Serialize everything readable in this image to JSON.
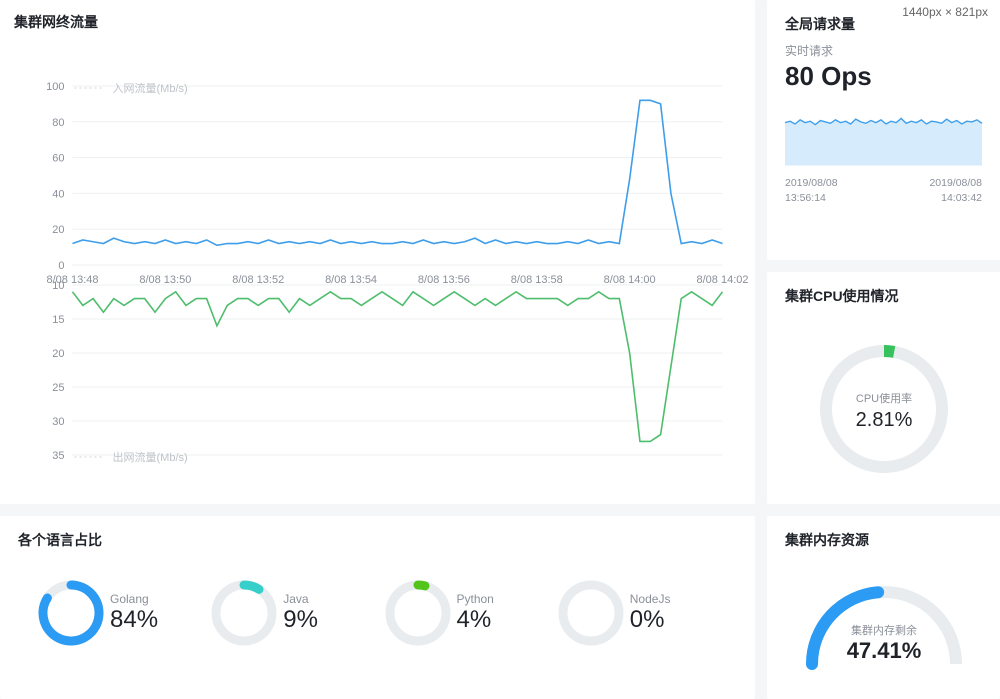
{
  "dimension_badge": "1440px × 821px",
  "traffic": {
    "title": "集群网终流量",
    "legend_in": "入网流量(Mb/s)",
    "legend_out": "出网流量(Mb/s)",
    "color_in": "#3f9eea",
    "color_out": "#4ebd6c",
    "grid_color": "#eef0f2",
    "axis_color": "#8a8f99",
    "x_labels": [
      "8/08 13:48",
      "8/08 13:50",
      "8/08 13:52",
      "8/08 13:54",
      "8/08 13:56",
      "8/08 13:58",
      "8/08 14:00",
      "8/08 14:02"
    ],
    "y_in_ticks": [
      0,
      20,
      40,
      60,
      80,
      100
    ],
    "y_out_ticks": [
      10,
      15,
      20,
      25,
      30,
      35
    ],
    "in_values": [
      12,
      14,
      13,
      12,
      15,
      13,
      12,
      13,
      12,
      14,
      12,
      13,
      12,
      14,
      11,
      12,
      12,
      13,
      12,
      14,
      12,
      13,
      12,
      13,
      12,
      14,
      12,
      13,
      12,
      13,
      12,
      12,
      13,
      12,
      14,
      12,
      13,
      12,
      13,
      15,
      12,
      14,
      12,
      13,
      12,
      13,
      12,
      12,
      13,
      12,
      14,
      12,
      13,
      12,
      48,
      92,
      92,
      90,
      40,
      12,
      13,
      12,
      14,
      12
    ],
    "out_values": [
      11,
      13,
      12,
      14,
      12,
      13,
      12,
      12,
      14,
      12,
      11,
      13,
      12,
      12,
      16,
      13,
      12,
      12,
      13,
      12,
      12,
      14,
      12,
      13,
      12,
      11,
      12,
      12,
      13,
      12,
      11,
      12,
      13,
      11,
      12,
      13,
      12,
      11,
      12,
      13,
      12,
      13,
      12,
      11,
      12,
      12,
      12,
      12,
      13,
      12,
      12,
      11,
      12,
      12,
      20,
      33,
      33,
      32,
      22,
      12,
      11,
      12,
      13,
      11
    ]
  },
  "requests": {
    "title": "全局请求量",
    "subtitle": "实时请求",
    "value": "80 Ops",
    "line_color": "#3f9eea",
    "fill_color": "#d6ebfb",
    "range_start_date": "2019/08/08",
    "range_start_time": "13:56:14",
    "range_end_date": "2019/08/08",
    "range_end_time": "14:03:42",
    "spark_values": [
      78,
      80,
      76,
      82,
      78,
      80,
      75,
      81,
      79,
      77,
      82,
      78,
      80,
      76,
      83,
      79,
      77,
      81,
      78,
      82,
      76,
      80,
      78,
      84,
      77,
      80,
      78,
      82,
      76,
      80,
      79,
      77,
      83,
      78,
      81,
      76,
      80,
      79,
      82,
      77
    ]
  },
  "cpu": {
    "title": "集群CPU使用情况",
    "center_label": "CPU使用率",
    "value_text": "2.81%",
    "percent": 2.81,
    "ring_bg": "#e8ecef",
    "ring_fg": "#38c25d"
  },
  "languages": {
    "title": "各个语言占比",
    "items": [
      {
        "name": "Golang",
        "percent": 84,
        "value_text": "84%",
        "color": "#2b9bf4",
        "track": "#e8ecef"
      },
      {
        "name": "Java",
        "percent": 9,
        "value_text": "9%",
        "color": "#36cfc9",
        "track": "#e8ecef"
      },
      {
        "name": "Python",
        "percent": 4,
        "value_text": "4%",
        "color": "#52c41a",
        "track": "#e8ecef"
      },
      {
        "name": "NodeJs",
        "percent": 0,
        "value_text": "0%",
        "color": "#bfbfbf",
        "track": "#e8ecef"
      }
    ]
  },
  "memory": {
    "title": "集群内存资源",
    "center_label": "集群内存剩余",
    "value_text": "47.41%",
    "percent": 47.41,
    "ring_fg": "#2b9bf4",
    "ring_bg": "#e8ecef"
  }
}
